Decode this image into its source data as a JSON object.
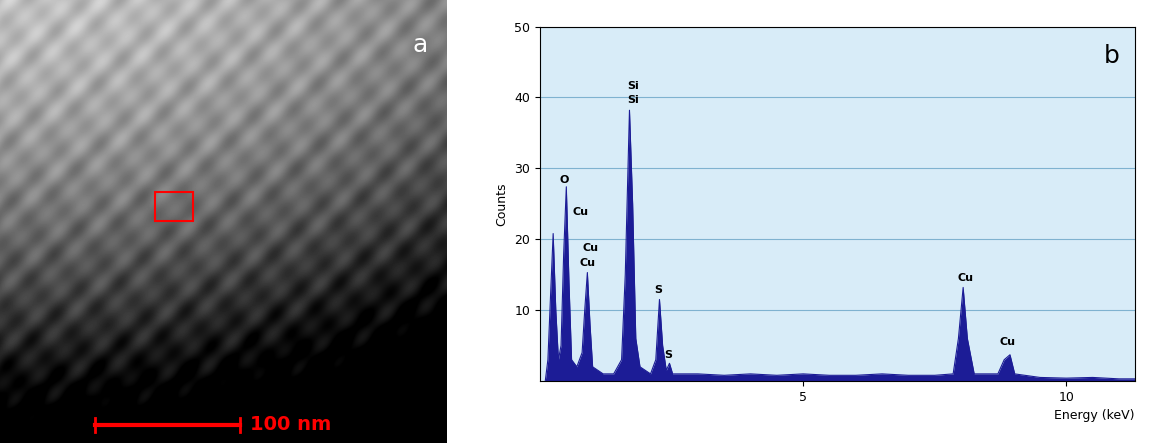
{
  "image_panel": {
    "panel_label": "a",
    "scale_bar_label": "100 nm"
  },
  "chart_data": {
    "type": "area",
    "panel_label": "b",
    "x_label": "Energy (keV)",
    "y_label": "Counts",
    "x": [
      0.1,
      0.15,
      0.2,
      0.25,
      0.3,
      0.35,
      0.4,
      0.45,
      0.5,
      0.55,
      0.6,
      0.7,
      0.8,
      0.85,
      0.9,
      0.95,
      1.0,
      1.2,
      1.4,
      1.55,
      1.62,
      1.7,
      1.76,
      1.82,
      1.9,
      2.1,
      2.2,
      2.27,
      2.33,
      2.4,
      2.46,
      2.52,
      3.0,
      3.5,
      4.0,
      4.5,
      5.0,
      5.5,
      6.0,
      6.5,
      7.0,
      7.5,
      7.85,
      7.95,
      8.04,
      8.12,
      8.25,
      8.7,
      8.82,
      8.93,
      9.02,
      9.5,
      10.0,
      10.5,
      11.0,
      11.3
    ],
    "values": [
      0,
      3,
      12,
      20.8,
      10,
      3,
      5,
      18,
      27.4,
      14,
      3,
      2,
      4,
      10,
      15.3,
      8,
      2,
      1,
      1,
      3,
      15,
      38.2,
      25,
      6,
      2,
      1,
      3,
      11.5,
      5,
      1.5,
      2.5,
      1,
      1,
      0.8,
      1,
      0.8,
      1,
      0.8,
      0.8,
      1,
      0.8,
      0.8,
      1,
      6,
      13.2,
      6,
      1,
      1,
      3,
      3.7,
      1,
      0.5,
      0.4,
      0.5,
      0.3,
      0.3
    ],
    "color": "#1c1c96",
    "peak_labels": [
      {
        "text": "O",
        "x": 0.46,
        "y": 28.4
      },
      {
        "text": "Cu",
        "x": 0.77,
        "y": 23.8
      },
      {
        "text": "Cu",
        "x": 0.96,
        "y": 18.8
      },
      {
        "text": "Cu",
        "x": 0.9,
        "y": 16.7
      },
      {
        "text": "Si",
        "x": 1.77,
        "y": 41.6
      },
      {
        "text": "Si",
        "x": 1.77,
        "y": 39.6
      },
      {
        "text": "S",
        "x": 2.25,
        "y": 12.9
      },
      {
        "text": "S",
        "x": 2.44,
        "y": 3.6
      },
      {
        "text": "Cu",
        "x": 8.08,
        "y": 14.5
      },
      {
        "text": "Cu",
        "x": 8.89,
        "y": 5.5
      }
    ],
    "xlim": [
      0,
      11.3
    ],
    "xticks": [
      5,
      10
    ],
    "ylim": [
      0,
      50
    ],
    "yticks": [
      10,
      20,
      30,
      40,
      50
    ],
    "grid": true
  }
}
